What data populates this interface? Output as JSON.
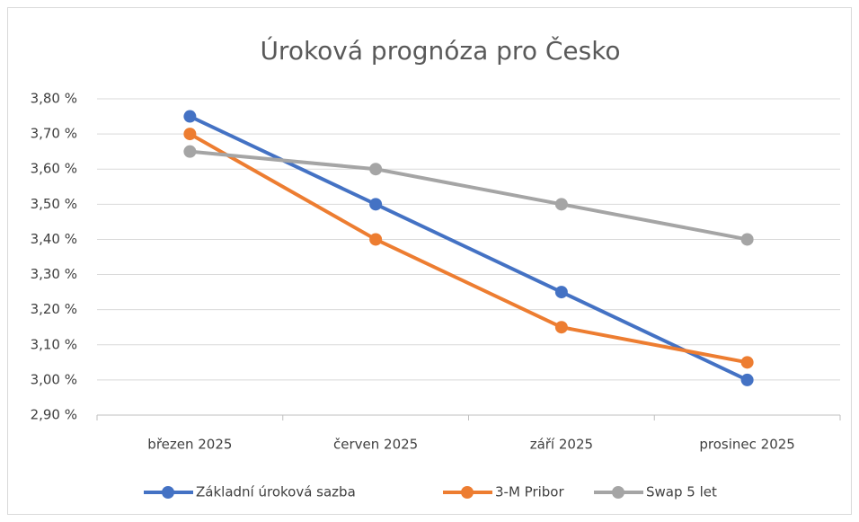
{
  "chart_data": {
    "type": "line",
    "title": "Úroková prognóza pro Česko",
    "categories": [
      "březen 2025",
      "červen 2025",
      "září 2025",
      "prosinec 2025"
    ],
    "series": [
      {
        "name": "Základní úroková sazba",
        "color": "#4472c4",
        "values": [
          3.75,
          3.5,
          3.25,
          3.0
        ]
      },
      {
        "name": "3-M Pribor",
        "color": "#ed7d31",
        "values": [
          3.7,
          3.4,
          3.15,
          3.05
        ]
      },
      {
        "name": "Swap 5 let",
        "color": "#a5a5a5",
        "values": [
          3.65,
          3.6,
          3.5,
          3.4
        ]
      }
    ],
    "ylim": [
      2.9,
      3.8
    ],
    "yticks": [
      {
        "value": 2.9,
        "label": "2,90 %"
      },
      {
        "value": 3.0,
        "label": "3,00 %"
      },
      {
        "value": 3.1,
        "label": "3,10 %"
      },
      {
        "value": 3.2,
        "label": "3,20 %"
      },
      {
        "value": 3.3,
        "label": "3,30 %"
      },
      {
        "value": 3.4,
        "label": "3,40 %"
      },
      {
        "value": 3.5,
        "label": "3,50 %"
      },
      {
        "value": 3.6,
        "label": "3,60 %"
      },
      {
        "value": 3.7,
        "label": "3,70 %"
      },
      {
        "value": 3.8,
        "label": "3,80 %"
      }
    ],
    "grid": true,
    "legend": "bottom"
  }
}
